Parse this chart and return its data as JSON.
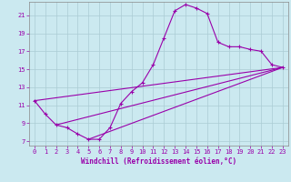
{
  "xlabel": "Windchill (Refroidissement éolien,°C)",
  "bg_color": "#cbe9f0",
  "line_color": "#9900aa",
  "grid_color": "#aaccd4",
  "xlim": [
    -0.5,
    23.5
  ],
  "ylim": [
    6.5,
    22.5
  ],
  "xticks": [
    0,
    1,
    2,
    3,
    4,
    5,
    6,
    7,
    8,
    9,
    10,
    11,
    12,
    13,
    14,
    15,
    16,
    17,
    18,
    19,
    20,
    21,
    22,
    23
  ],
  "yticks": [
    7,
    9,
    11,
    13,
    15,
    17,
    19,
    21
  ],
  "curve_points": [
    [
      0,
      11.5
    ],
    [
      1,
      10.0
    ],
    [
      2,
      8.8
    ],
    [
      3,
      8.5
    ],
    [
      4,
      7.8
    ],
    [
      5,
      7.2
    ],
    [
      6,
      7.2
    ],
    [
      7,
      8.5
    ],
    [
      8,
      11.2
    ],
    [
      9,
      12.5
    ],
    [
      10,
      13.5
    ],
    [
      11,
      15.5
    ],
    [
      12,
      18.5
    ],
    [
      13,
      21.5
    ],
    [
      14,
      22.2
    ],
    [
      15,
      21.8
    ],
    [
      16,
      21.2
    ],
    [
      17,
      18.0
    ],
    [
      18,
      17.5
    ],
    [
      19,
      17.5
    ],
    [
      20,
      17.2
    ],
    [
      21,
      17.0
    ],
    [
      22,
      15.5
    ],
    [
      23,
      15.2
    ]
  ],
  "fan_lines": [
    [
      [
        0,
        11.5
      ],
      [
        23,
        15.2
      ]
    ],
    [
      [
        2,
        8.8
      ],
      [
        23,
        15.2
      ]
    ],
    [
      [
        5,
        7.2
      ],
      [
        23,
        15.2
      ]
    ]
  ],
  "label_fontsize": 5.5,
  "tick_fontsize": 5.0
}
